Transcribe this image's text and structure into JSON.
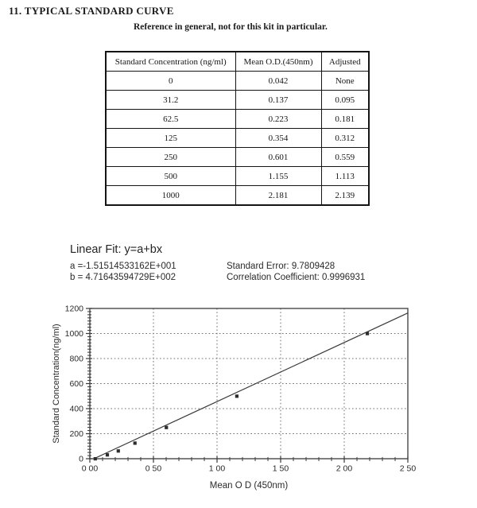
{
  "page": {
    "section_title": "11. TYPICAL STANDARD CURVE",
    "subtitle": "Reference in general, not for this kit in particular."
  },
  "table": {
    "headers": [
      "Standard Concentration (ng/ml)",
      "Mean O.D.(450nm)",
      "Adjusted"
    ],
    "rows": [
      [
        "0",
        "0.042",
        "None"
      ],
      [
        "31.2",
        "0.137",
        "0.095"
      ],
      [
        "62.5",
        "0.223",
        "0.181"
      ],
      [
        "125",
        "0.354",
        "0.312"
      ],
      [
        "250",
        "0.601",
        "0.559"
      ],
      [
        "500",
        "1.155",
        "1.113"
      ],
      [
        "1000",
        "2.181",
        "2.139"
      ]
    ]
  },
  "linear_fit": {
    "title": "Linear Fit: y=a+bx",
    "a_label": "a =-1.51514533162E+001",
    "b_label": "b = 4.71643594729E+002",
    "standard_error": "Standard Error: 9.7809428",
    "correlation": "Correlation Coefficient: 0.9996931"
  },
  "chart_data": {
    "type": "scatter",
    "title": "",
    "xlabel": "Mean O D (450nm)",
    "ylabel": "Standard Concentration(ng/ml)",
    "xlim": [
      0,
      2.5
    ],
    "ylim": [
      0,
      1200
    ],
    "x_ticks": [
      0,
      0.5,
      1.0,
      1.5,
      2.0,
      2.5
    ],
    "x_tick_labels": [
      "0 00",
      "0 50",
      "1 00",
      "1 50",
      "2 00",
      "2 50"
    ],
    "y_ticks": [
      0,
      200,
      400,
      600,
      800,
      1000,
      1200
    ],
    "y_tick_labels": [
      "0",
      "200",
      "400",
      "600",
      "800",
      "1000",
      "1200"
    ],
    "x_minor_step": 0.1,
    "y_minor_step": 25,
    "grid": "dotted",
    "legend_position": "none",
    "points": [
      {
        "x": 0.042,
        "y": 0
      },
      {
        "x": 0.137,
        "y": 31.2
      },
      {
        "x": 0.223,
        "y": 62.5
      },
      {
        "x": 0.354,
        "y": 125
      },
      {
        "x": 0.601,
        "y": 250
      },
      {
        "x": 1.155,
        "y": 500
      },
      {
        "x": 2.181,
        "y": 1000
      }
    ],
    "fit_line": {
      "intercept_a": -15.1514533162,
      "slope_b": 471.643594729
    }
  }
}
